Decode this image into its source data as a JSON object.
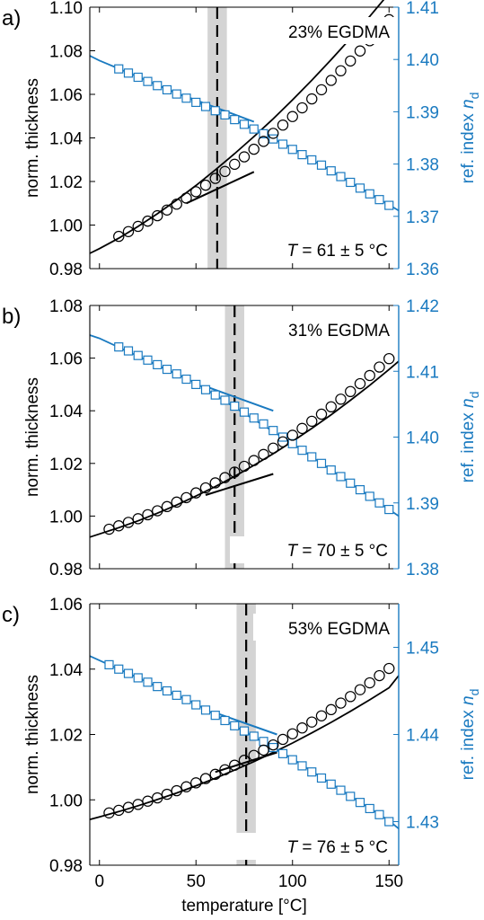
{
  "colors": {
    "left_axis": "#000000",
    "right_axis": "#1a7ac0",
    "band": "#d4d4d4"
  },
  "shared_xlabel": "temperature [°C]",
  "chart_data": [
    {
      "type": "scatter",
      "panel_label": "a)",
      "annotation": "23% EGDMA",
      "transition": {
        "T_prefix": "T",
        "T_suffix": " =  61 ± 5 °C",
        "T": 61,
        "band": [
          56,
          66
        ]
      },
      "x_range": [
        -5,
        155
      ],
      "x_ticks": [
        0,
        50,
        100,
        150
      ],
      "ylabel_left": "norm. thickness",
      "ylabel_right_main": "ref. index ",
      "ylabel_right_ital": "n",
      "ylabel_right_sub": "d",
      "yleft_range": [
        0.98,
        1.1
      ],
      "yleft_ticks": [
        "0.98",
        "1.00",
        "1.02",
        "1.04",
        "1.06",
        "1.08",
        "1.10"
      ],
      "yright_range": [
        1.36,
        1.41
      ],
      "yright_ticks": [
        "1.36",
        "1.37",
        "1.38",
        "1.39",
        "1.40",
        "1.41"
      ],
      "thickness": {
        "x": [
          10,
          15,
          20,
          25,
          30,
          35,
          40,
          45,
          50,
          55,
          60,
          65,
          70,
          75,
          80,
          85,
          90,
          95,
          100,
          105,
          110,
          115,
          120,
          125,
          130,
          135,
          140,
          145,
          150
        ],
        "y": [
          0.9948,
          0.997,
          0.9994,
          1.0018,
          1.0043,
          1.0069,
          1.0096,
          1.0124,
          1.0153,
          1.0183,
          1.0214,
          1.0246,
          1.0279,
          1.0313,
          1.0348,
          1.0384,
          1.0421,
          1.0459,
          1.0498,
          1.0538,
          1.0579,
          1.0621,
          1.0664,
          1.0708,
          1.0753,
          1.0799,
          1.0846,
          1.0894,
          1.0943
        ]
      },
      "thickness_fit": {
        "x": [
          -5,
          0,
          10,
          20,
          30,
          40,
          50,
          60,
          70,
          80,
          90,
          100,
          110,
          120,
          130,
          140,
          150,
          155
        ],
        "y": [
          0.987,
          0.9892,
          0.994,
          0.9994,
          1.0052,
          1.0115,
          1.0182,
          1.0253,
          1.0328,
          1.0406,
          1.0488,
          1.0575,
          1.0665,
          1.0759,
          1.0857,
          1.0958,
          1.1064,
          1.1118
        ]
      },
      "thickness_tangent": {
        "x": [
          45,
          80
        ],
        "y": [
          1.01,
          1.0244
        ]
      },
      "refindex": {
        "x": [
          10,
          15,
          20,
          25,
          30,
          35,
          40,
          45,
          50,
          55,
          60,
          65,
          70,
          75,
          80,
          85,
          90,
          95,
          100,
          105,
          110,
          115,
          120,
          125,
          130,
          135,
          140,
          145,
          150
        ],
        "y": [
          1.3982,
          1.3974,
          1.3966,
          1.3958,
          1.395,
          1.3942,
          1.3934,
          1.3926,
          1.3918,
          1.391,
          1.3902,
          1.3894,
          1.3885,
          1.3876,
          1.3867,
          1.3858,
          1.3848,
          1.3838,
          1.3828,
          1.3818,
          1.3808,
          1.3798,
          1.3787,
          1.3776,
          1.3765,
          1.3754,
          1.3743,
          1.3732,
          1.3721
        ]
      },
      "refindex_fit": {
        "x": [
          -5,
          0,
          50,
          100,
          150,
          155
        ],
        "y": [
          1.4007,
          1.3998,
          1.392,
          1.383,
          1.3722,
          1.3711
        ]
      },
      "refindex_tangent": {
        "x": [
          45,
          80
        ],
        "y": [
          1.3929,
          1.3881
        ]
      }
    },
    {
      "type": "scatter",
      "panel_label": "b)",
      "annotation": "31% EGDMA",
      "transition": {
        "T_prefix": "T",
        "T_suffix": " =  70 ± 5 °C",
        "T": 70,
        "band": [
          65,
          75
        ]
      },
      "x_range": [
        -5,
        155
      ],
      "x_ticks": [
        0,
        50,
        100,
        150
      ],
      "ylabel_left": "norm. thickness",
      "ylabel_right_main": "ref. index ",
      "ylabel_right_ital": "n",
      "ylabel_right_sub": "d",
      "yleft_range": [
        0.98,
        1.08
      ],
      "yleft_ticks": [
        "0.98",
        "1.00",
        "1.02",
        "1.04",
        "1.06",
        "1.08"
      ],
      "yright_range": [
        1.38,
        1.42
      ],
      "yright_ticks": [
        "1.38",
        "1.39",
        "1.40",
        "1.41",
        "1.42"
      ],
      "thickness": {
        "x": [
          5,
          10,
          15,
          20,
          25,
          30,
          35,
          40,
          45,
          50,
          55,
          60,
          65,
          70,
          75,
          80,
          85,
          90,
          95,
          100,
          105,
          110,
          115,
          120,
          125,
          130,
          135,
          140,
          145,
          150
        ],
        "y": [
          0.995,
          0.9963,
          0.9976,
          0.999,
          1.0005,
          1.002,
          1.0036,
          1.0053,
          1.007,
          1.0088,
          1.0107,
          1.0126,
          1.0146,
          1.0167,
          1.0189,
          1.0211,
          1.0234,
          1.0258,
          1.0282,
          1.0307,
          1.0333,
          1.036,
          1.0387,
          1.0415,
          1.0444,
          1.0473,
          1.0503,
          1.0534,
          1.0566,
          1.0598
        ]
      },
      "thickness_fit": {
        "x": [
          -5,
          0,
          10,
          20,
          30,
          40,
          50,
          60,
          70,
          80,
          90,
          100,
          110,
          120,
          130,
          140,
          150,
          155
        ],
        "y": [
          0.992,
          0.9932,
          0.9956,
          0.9982,
          1.0011,
          1.0042,
          1.0076,
          1.0112,
          1.0151,
          1.0193,
          1.0237,
          1.0284,
          1.0333,
          1.0385,
          1.044,
          1.0497,
          1.0557,
          1.0588
        ]
      },
      "thickness_tangent": {
        "x": [
          55,
          90
        ],
        "y": [
          1.008,
          1.016
        ]
      },
      "refindex": {
        "x": [
          10,
          15,
          20,
          25,
          30,
          35,
          40,
          45,
          50,
          55,
          60,
          65,
          70,
          75,
          80,
          85,
          90,
          95,
          100,
          105,
          110,
          115,
          120,
          125,
          130,
          135,
          140,
          145,
          150
        ],
        "y": [
          1.4137,
          1.4131,
          1.4124,
          1.4117,
          1.411,
          1.4103,
          1.4096,
          1.4088,
          1.408,
          1.4072,
          1.4064,
          1.4056,
          1.4047,
          1.4038,
          1.4029,
          1.402,
          1.401,
          1.4,
          1.399,
          1.398,
          1.397,
          1.396,
          1.395,
          1.394,
          1.393,
          1.392,
          1.391,
          1.39,
          1.389
        ]
      },
      "refindex_fit": {
        "x": [
          -5,
          0,
          50,
          100,
          150,
          155
        ],
        "y": [
          1.4155,
          1.415,
          1.4082,
          1.399,
          1.389,
          1.388
        ]
      },
      "refindex_tangent": {
        "x": [
          55,
          90
        ],
        "y": [
          1.4077,
          1.404
        ]
      }
    },
    {
      "type": "scatter",
      "panel_label": "c)",
      "annotation": "53% EGDMA",
      "transition": {
        "T_prefix": "T",
        "T_suffix": " =  76 ± 5 °C",
        "T": 76,
        "band": [
          71,
          81
        ]
      },
      "x_range": [
        -5,
        155
      ],
      "x_ticks": [
        0,
        50,
        100,
        150
      ],
      "x_tick_labels": [
        "0",
        "50",
        "100",
        "150"
      ],
      "ylabel_left": "norm. thickness",
      "ylabel_right_main": "ref. index ",
      "ylabel_right_ital": "n",
      "ylabel_right_sub": "d",
      "yleft_range": [
        0.98,
        1.06
      ],
      "yleft_ticks": [
        "0.98",
        "1.00",
        "1.02",
        "1.04",
        "1.06"
      ],
      "yright_range": [
        1.425,
        1.455
      ],
      "yright_ticks": [
        "1.43",
        "1.44",
        "1.45"
      ],
      "thickness": {
        "x": [
          5,
          10,
          15,
          20,
          25,
          30,
          35,
          40,
          45,
          50,
          55,
          60,
          65,
          70,
          75,
          80,
          85,
          90,
          95,
          100,
          105,
          110,
          115,
          120,
          125,
          130,
          135,
          140,
          145,
          150
        ],
        "y": [
          0.996,
          0.9968,
          0.9977,
          0.9986,
          0.9996,
          1.0006,
          1.0017,
          1.0028,
          1.004,
          1.0052,
          1.0065,
          1.0078,
          1.0092,
          1.0106,
          1.0121,
          1.0136,
          1.0152,
          1.0168,
          1.0185,
          1.0202,
          1.022,
          1.0238,
          1.0257,
          1.0276,
          1.0296,
          1.0316,
          1.0337,
          1.0358,
          1.038,
          1.0402
        ]
      },
      "thickness_fit": {
        "x": [
          -5,
          0,
          10,
          20,
          30,
          40,
          50,
          60,
          70,
          80,
          90,
          100,
          110,
          120,
          130,
          140,
          150,
          155
        ],
        "y": [
          0.994,
          0.9948,
          0.9964,
          0.9982,
          1.0001,
          1.0021,
          1.0043,
          1.0066,
          1.0091,
          1.0117,
          1.0145,
          1.0174,
          1.0205,
          1.0237,
          1.0271,
          1.0306,
          1.0343,
          1.038
        ]
      },
      "thickness_tangent": {
        "x": [
          60,
          92
        ],
        "y": [
          1.0085,
          1.0145
        ]
      },
      "refindex": {
        "x": [
          5,
          10,
          15,
          20,
          25,
          30,
          35,
          40,
          45,
          50,
          55,
          60,
          65,
          70,
          75,
          80,
          85,
          90,
          95,
          100,
          105,
          110,
          115,
          120,
          125,
          130,
          135,
          140,
          145,
          150
        ],
        "y": [
          1.448,
          1.4475,
          1.447,
          1.4465,
          1.446,
          1.4455,
          1.445,
          1.4445,
          1.444,
          1.4434,
          1.4428,
          1.4422,
          1.4416,
          1.441,
          1.4404,
          1.4398,
          1.4392,
          1.4385,
          1.4378,
          1.4371,
          1.4364,
          1.4357,
          1.435,
          1.4343,
          1.4336,
          1.4329,
          1.4322,
          1.4315,
          1.4308,
          1.43
        ]
      },
      "refindex_fit": {
        "x": [
          -5,
          0,
          50,
          100,
          150,
          155
        ],
        "y": [
          1.449,
          1.4485,
          1.4435,
          1.4372,
          1.4301,
          1.4292
        ]
      },
      "refindex_tangent": {
        "x": [
          60,
          92
        ],
        "y": [
          1.4425,
          1.44
        ]
      }
    }
  ]
}
